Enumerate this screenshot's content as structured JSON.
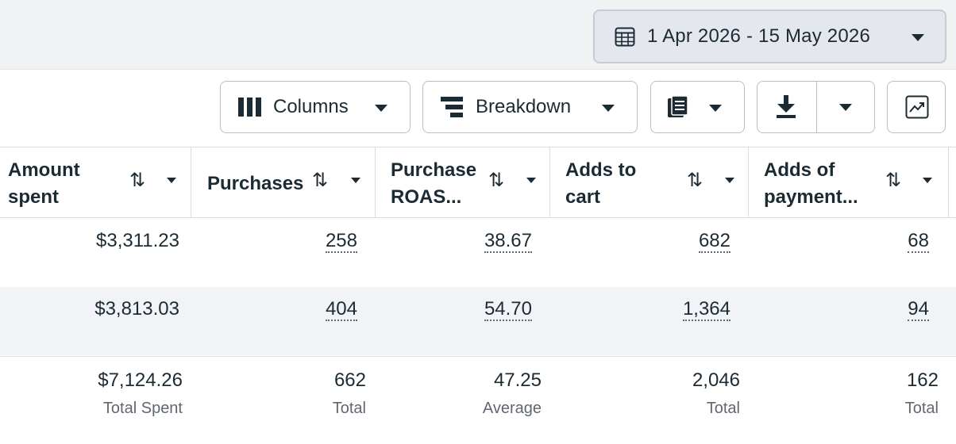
{
  "date_picker": {
    "label": "1 Apr 2026 - 15 May 2026",
    "icon": "calendar-icon"
  },
  "toolbar": {
    "columns_label": "Columns",
    "breakdown_label": "Breakdown",
    "reports_icon": "reports-icon",
    "export_icon": "download-icon",
    "chart_icon": "trend-chart-icon"
  },
  "table": {
    "headers": [
      {
        "line1": "Amount",
        "line2": "spent"
      },
      {
        "line1": "Purchases",
        "line2": ""
      },
      {
        "line1": "Purchase",
        "line2": "ROAS..."
      },
      {
        "line1": "Adds to",
        "line2": "cart"
      },
      {
        "line1": "Adds of",
        "line2": "payment..."
      }
    ],
    "rows": [
      [
        "$3,311.23",
        "258",
        "38.67",
        "682",
        "68"
      ],
      [
        "$3,813.03",
        "404",
        "54.70",
        "1,364",
        "94"
      ]
    ],
    "totals": [
      {
        "value": "$7,124.26",
        "label": "Total Spent"
      },
      {
        "value": "662",
        "label": "Total"
      },
      {
        "value": "47.25",
        "label": "Average"
      },
      {
        "value": "2,046",
        "label": "Total"
      },
      {
        "value": "162",
        "label": "Total"
      }
    ]
  }
}
